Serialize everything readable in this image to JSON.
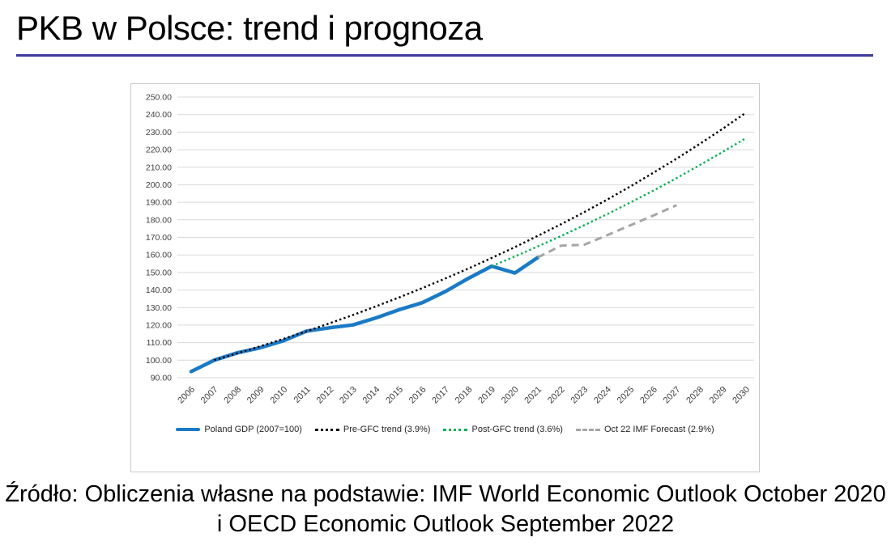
{
  "page": {
    "title": "PKB w Polsce: trend i prognoza",
    "accent_rule_color": "#3B3B9C",
    "source_line1": "Źródło: Obliczenia własne na podstawie: IMF World Economic Outlook October 2020",
    "source_line2": "i OECD Economic Outlook September 2022"
  },
  "chart_data": {
    "type": "line",
    "title": "",
    "xlabel": "",
    "ylabel": "",
    "x": [
      2006,
      2007,
      2008,
      2009,
      2010,
      2011,
      2012,
      2013,
      2014,
      2015,
      2016,
      2017,
      2018,
      2019,
      2020,
      2021,
      2022,
      2023,
      2024,
      2025,
      2026,
      2027,
      2028,
      2029,
      2030
    ],
    "ylim": [
      90,
      250
    ],
    "yticks": [
      250,
      240,
      230,
      220,
      210,
      200,
      190,
      180,
      170,
      160,
      150,
      140,
      130,
      120,
      110,
      100,
      90
    ],
    "ytick_format": "2dp",
    "grid": true,
    "legend_position": "bottom",
    "axis_label_color": "#404040",
    "gridline_color": "#D9D9D9",
    "series": [
      {
        "name": "Poland GDP (2007=100)",
        "color": "#1B7AC6",
        "style": "solid",
        "width": 4.5,
        "start_year": 2006,
        "values": [
          93.5,
          100.0,
          104.2,
          107.1,
          111.1,
          116.6,
          118.5,
          120.1,
          124.1,
          128.8,
          132.8,
          139.2,
          146.7,
          153.6,
          149.7,
          158.6
        ]
      },
      {
        "name": "Pre-GFC trend (3.9%)",
        "color": "#000000",
        "style": "dotted",
        "width": 2.4,
        "start_year": 2007,
        "values": [
          100.0,
          103.9,
          108.0,
          112.2,
          116.5,
          121.1,
          125.8,
          130.7,
          135.8,
          141.1,
          146.6,
          152.3,
          158.3,
          164.4,
          170.9,
          177.5,
          184.4,
          191.6,
          199.1,
          206.9,
          214.9,
          223.3,
          232.0,
          241.1
        ]
      },
      {
        "name": "Post-GFC trend (3.6%)",
        "color": "#00B050",
        "style": "dotted",
        "width": 2.4,
        "start_year": 2019,
        "values": [
          153.6,
          159.1,
          164.9,
          170.8,
          176.9,
          183.3,
          189.9,
          196.7,
          203.8,
          211.2,
          218.8,
          226.6
        ]
      },
      {
        "name": "Oct 22 IMF Forecast (2.9%)",
        "color": "#A6A6A6",
        "style": "dashed",
        "width": 3,
        "start_year": 2021,
        "values": [
          158.6,
          165.3,
          165.8,
          171.3,
          176.9,
          182.5,
          188.4
        ]
      }
    ]
  }
}
